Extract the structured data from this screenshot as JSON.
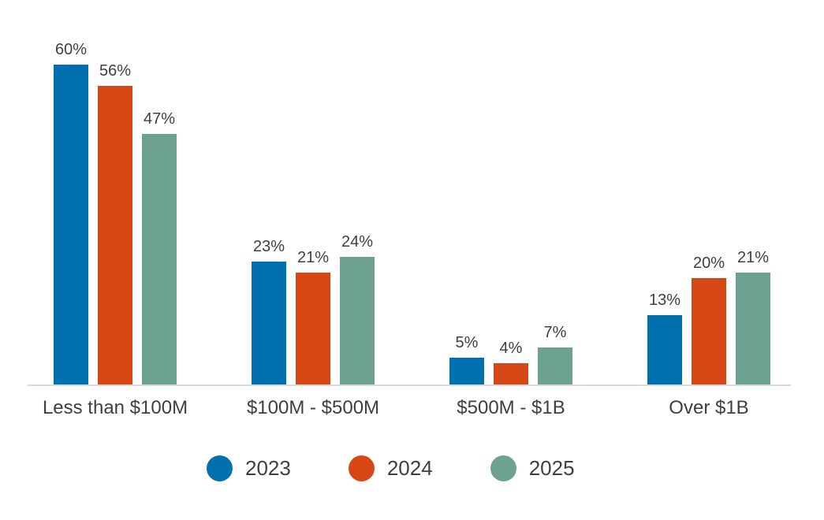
{
  "chart_data": {
    "type": "bar",
    "title": "",
    "xlabel": "",
    "ylabel": "",
    "unit": "%",
    "ylim": [
      0,
      60
    ],
    "grid": false,
    "legend_position": "bottom",
    "categories": [
      "Less than $100M",
      "$100M - $500M",
      "$500M - $1B",
      "Over $1B"
    ],
    "series": [
      {
        "name": "2023",
        "color": "#0071AE",
        "values": [
          60,
          23,
          5,
          13
        ],
        "labels": [
          "60%",
          "23%",
          "5%",
          "13%"
        ]
      },
      {
        "name": "2024",
        "color": "#D54715",
        "values": [
          56,
          21,
          4,
          20
        ],
        "labels": [
          "56%",
          "21%",
          "4%",
          "20%"
        ]
      },
      {
        "name": "2025",
        "color": "#6DA192",
        "values": [
          47,
          24,
          7,
          21
        ],
        "labels": [
          "47%",
          "24%",
          "7%",
          "21%"
        ]
      }
    ]
  },
  "legend": {
    "items": [
      {
        "label": "2023",
        "color": "#0071AE"
      },
      {
        "label": "2024",
        "color": "#D54715"
      },
      {
        "label": "2025",
        "color": "#6DA192"
      }
    ]
  },
  "colors": {
    "axis_line": "#D9D9D9",
    "label_text": "#3F3F3F",
    "background": "#FFFFFF"
  }
}
